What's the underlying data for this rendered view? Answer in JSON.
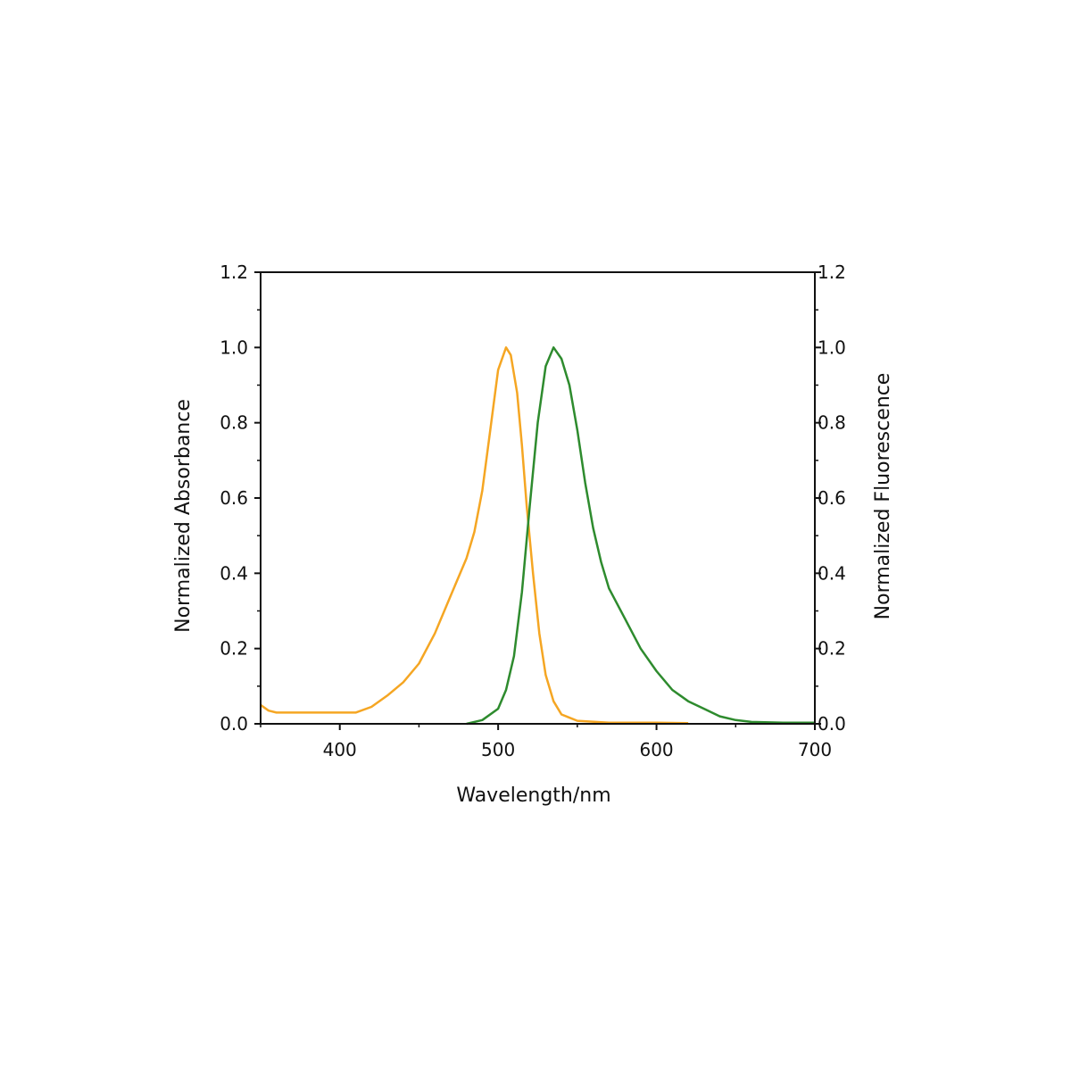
{
  "chart_data": {
    "type": "line",
    "xlabel": "Wavelength/nm",
    "ylabel_left": "Normalized Absorbance",
    "ylabel_right": "Normalized Fluorescence",
    "xlim": [
      350,
      700
    ],
    "ylim": [
      0,
      1.2
    ],
    "x_ticks": [
      400,
      500,
      600,
      700
    ],
    "x_tick_labels": [
      "400",
      "500",
      "600",
      "700"
    ],
    "y_ticks": [
      0,
      0.2,
      0.4,
      0.6,
      0.8,
      1.0,
      1.2
    ],
    "y_tick_labels": [
      "0.0",
      "0.2",
      "0.4",
      "0.6",
      "0.8",
      "1.0",
      "1.2"
    ],
    "grid": false,
    "series": [
      {
        "color": "#f5a623",
        "axis": "left",
        "points": [
          [
            350,
            0.05
          ],
          [
            355,
            0.035
          ],
          [
            360,
            0.03
          ],
          [
            380,
            0.03
          ],
          [
            400,
            0.03
          ],
          [
            410,
            0.03
          ],
          [
            420,
            0.045
          ],
          [
            430,
            0.075
          ],
          [
            440,
            0.11
          ],
          [
            450,
            0.16
          ],
          [
            460,
            0.24
          ],
          [
            470,
            0.34
          ],
          [
            480,
            0.44
          ],
          [
            485,
            0.51
          ],
          [
            490,
            0.62
          ],
          [
            495,
            0.78
          ],
          [
            500,
            0.94
          ],
          [
            505,
            1.0
          ],
          [
            508,
            0.98
          ],
          [
            512,
            0.88
          ],
          [
            515,
            0.74
          ],
          [
            518,
            0.58
          ],
          [
            522,
            0.4
          ],
          [
            526,
            0.24
          ],
          [
            530,
            0.13
          ],
          [
            535,
            0.06
          ],
          [
            540,
            0.025
          ],
          [
            550,
            0.008
          ],
          [
            570,
            0.003
          ],
          [
            600,
            0.003
          ],
          [
            620,
            0.002
          ]
        ]
      },
      {
        "color": "#2e8b2e",
        "axis": "right",
        "points": [
          [
            480,
            0.0
          ],
          [
            490,
            0.01
          ],
          [
            500,
            0.04
          ],
          [
            505,
            0.09
          ],
          [
            510,
            0.18
          ],
          [
            515,
            0.35
          ],
          [
            520,
            0.58
          ],
          [
            525,
            0.8
          ],
          [
            530,
            0.95
          ],
          [
            535,
            1.0
          ],
          [
            540,
            0.97
          ],
          [
            545,
            0.9
          ],
          [
            550,
            0.78
          ],
          [
            555,
            0.64
          ],
          [
            560,
            0.52
          ],
          [
            565,
            0.43
          ],
          [
            570,
            0.36
          ],
          [
            580,
            0.28
          ],
          [
            590,
            0.2
          ],
          [
            600,
            0.14
          ],
          [
            610,
            0.09
          ],
          [
            620,
            0.06
          ],
          [
            630,
            0.04
          ],
          [
            640,
            0.02
          ],
          [
            650,
            0.01
          ],
          [
            660,
            0.005
          ],
          [
            680,
            0.003
          ],
          [
            700,
            0.003
          ]
        ]
      }
    ]
  }
}
